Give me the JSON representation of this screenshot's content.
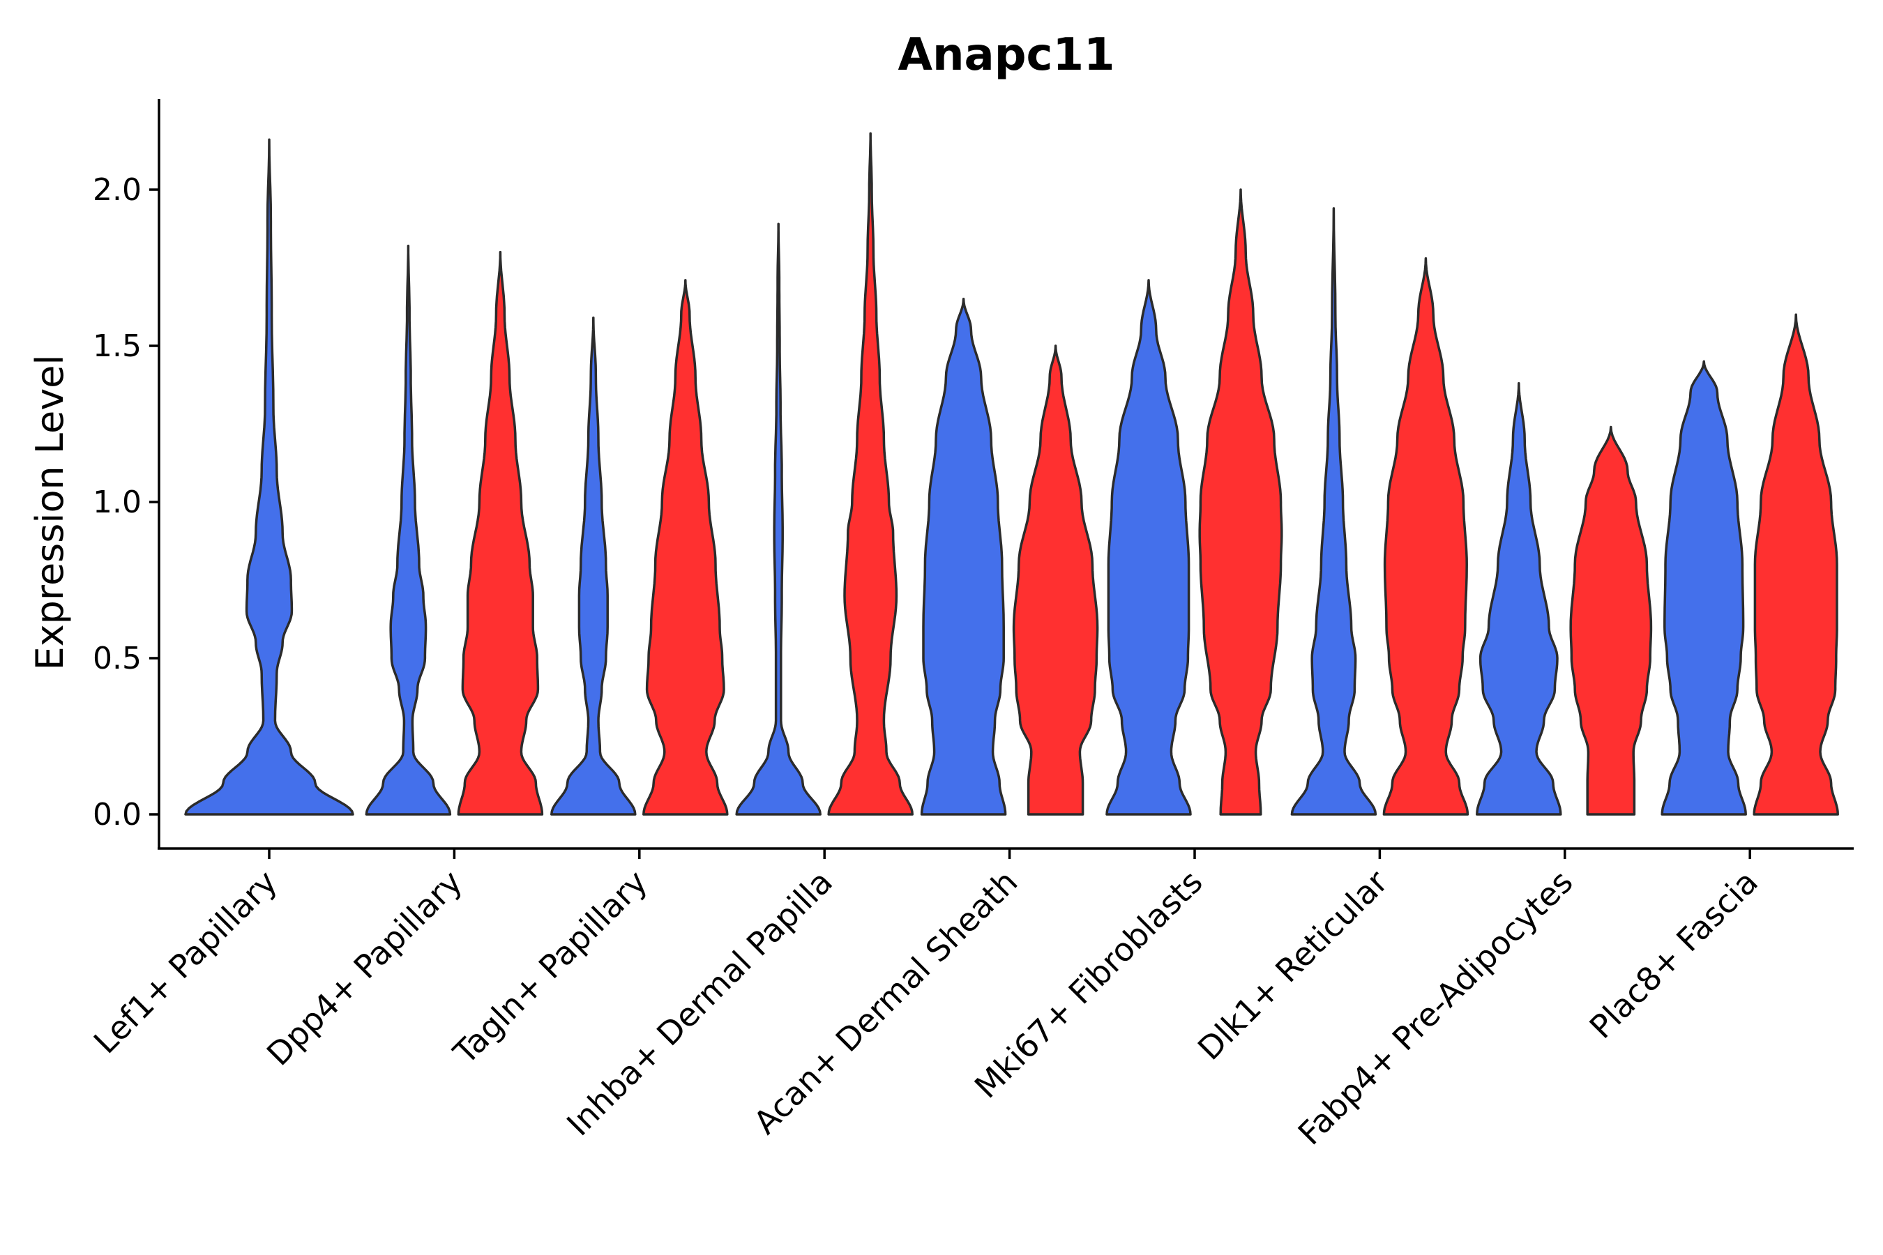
{
  "chart_data": {
    "type": "violin",
    "title": "Anapc11",
    "xlabel": "",
    "ylabel": "Expression Level",
    "ylim": [
      -0.1,
      2.3
    ],
    "yticks": [
      "0.0",
      "0.5",
      "1.0",
      "1.5",
      "2.0"
    ],
    "ytick_values": [
      0.0,
      0.5,
      1.0,
      1.5,
      2.0
    ],
    "colors": {
      "group1": "#4470EB",
      "group2": "#FF3030"
    },
    "categories": [
      "Lef1+ Papillary",
      "Dpp4+ Papillary",
      "Tagln+ Papillary",
      "Inhba+ Dermal Papilla",
      "Acan+ Dermal Sheath",
      "Mki67+ Fibroblasts",
      "Dlk1+ Reticular",
      "Fabp4+ Pre-Adipocytes",
      "Plac8+ Fascia"
    ],
    "violins": [
      {
        "category": 0,
        "group": "group1",
        "ymax": 2.16,
        "profile": [
          [
            0,
            1.0
          ],
          [
            0.1,
            0.55
          ],
          [
            0.2,
            0.26
          ],
          [
            0.3,
            0.07
          ],
          [
            0.45,
            0.09
          ],
          [
            0.55,
            0.16
          ],
          [
            0.65,
            0.27
          ],
          [
            0.75,
            0.26
          ],
          [
            0.9,
            0.16
          ],
          [
            1.1,
            0.09
          ],
          [
            1.3,
            0.05
          ],
          [
            1.6,
            0.03
          ],
          [
            1.9,
            0.02
          ],
          [
            2.16,
            0
          ]
        ]
      },
      {
        "category": 1,
        "group": "group1",
        "ymax": 1.82,
        "profile": [
          [
            0,
            1.0
          ],
          [
            0.1,
            0.6
          ],
          [
            0.2,
            0.12
          ],
          [
            0.3,
            0.1
          ],
          [
            0.4,
            0.22
          ],
          [
            0.5,
            0.4
          ],
          [
            0.6,
            0.42
          ],
          [
            0.7,
            0.36
          ],
          [
            0.8,
            0.26
          ],
          [
            1.0,
            0.16
          ],
          [
            1.2,
            0.09
          ],
          [
            1.4,
            0.06
          ],
          [
            1.6,
            0.03
          ],
          [
            1.82,
            0
          ]
        ]
      },
      {
        "category": 1,
        "group": "group2",
        "ymax": 1.8,
        "profile": [
          [
            0,
            1.0
          ],
          [
            0.1,
            0.85
          ],
          [
            0.2,
            0.5
          ],
          [
            0.3,
            0.62
          ],
          [
            0.4,
            0.9
          ],
          [
            0.5,
            0.88
          ],
          [
            0.6,
            0.78
          ],
          [
            0.7,
            0.78
          ],
          [
            0.8,
            0.7
          ],
          [
            1.0,
            0.5
          ],
          [
            1.2,
            0.36
          ],
          [
            1.4,
            0.22
          ],
          [
            1.6,
            0.1
          ],
          [
            1.8,
            0
          ]
        ]
      },
      {
        "category": 2,
        "group": "group1",
        "ymax": 1.59,
        "profile": [
          [
            0,
            1.0
          ],
          [
            0.1,
            0.62
          ],
          [
            0.2,
            0.16
          ],
          [
            0.3,
            0.12
          ],
          [
            0.4,
            0.2
          ],
          [
            0.5,
            0.3
          ],
          [
            0.6,
            0.34
          ],
          [
            0.7,
            0.34
          ],
          [
            0.8,
            0.3
          ],
          [
            1.0,
            0.2
          ],
          [
            1.2,
            0.12
          ],
          [
            1.4,
            0.06
          ],
          [
            1.59,
            0
          ]
        ]
      },
      {
        "category": 2,
        "group": "group2",
        "ymax": 1.71,
        "profile": [
          [
            0,
            1.0
          ],
          [
            0.1,
            0.76
          ],
          [
            0.2,
            0.5
          ],
          [
            0.3,
            0.7
          ],
          [
            0.4,
            0.92
          ],
          [
            0.5,
            0.88
          ],
          [
            0.6,
            0.82
          ],
          [
            0.8,
            0.72
          ],
          [
            1.0,
            0.56
          ],
          [
            1.2,
            0.38
          ],
          [
            1.4,
            0.24
          ],
          [
            1.6,
            0.1
          ],
          [
            1.71,
            0
          ]
        ]
      },
      {
        "category": 3,
        "group": "group1",
        "ymax": 1.89,
        "profile": [
          [
            0,
            1.0
          ],
          [
            0.1,
            0.58
          ],
          [
            0.2,
            0.24
          ],
          [
            0.3,
            0.06
          ],
          [
            0.5,
            0.06
          ],
          [
            0.7,
            0.08
          ],
          [
            0.9,
            0.1
          ],
          [
            1.1,
            0.08
          ],
          [
            1.3,
            0.05
          ],
          [
            1.5,
            0.03
          ],
          [
            1.7,
            0.02
          ],
          [
            1.89,
            0
          ]
        ]
      },
      {
        "category": 3,
        "group": "group2",
        "ymax": 2.18,
        "profile": [
          [
            0,
            1.0
          ],
          [
            0.1,
            0.7
          ],
          [
            0.2,
            0.38
          ],
          [
            0.3,
            0.32
          ],
          [
            0.5,
            0.48
          ],
          [
            0.7,
            0.62
          ],
          [
            0.9,
            0.54
          ],
          [
            1.0,
            0.44
          ],
          [
            1.2,
            0.32
          ],
          [
            1.4,
            0.22
          ],
          [
            1.6,
            0.14
          ],
          [
            1.8,
            0.07
          ],
          [
            2.0,
            0.03
          ],
          [
            2.18,
            0
          ]
        ]
      },
      {
        "category": 4,
        "group": "group1",
        "ymax": 1.65,
        "profile": [
          [
            0,
            1.0
          ],
          [
            0.1,
            0.86
          ],
          [
            0.2,
            0.7
          ],
          [
            0.3,
            0.75
          ],
          [
            0.4,
            0.88
          ],
          [
            0.5,
            0.96
          ],
          [
            0.6,
            0.96
          ],
          [
            0.8,
            0.92
          ],
          [
            1.0,
            0.82
          ],
          [
            1.2,
            0.66
          ],
          [
            1.4,
            0.42
          ],
          [
            1.55,
            0.18
          ],
          [
            1.65,
            0
          ]
        ]
      },
      {
        "category": 4,
        "group": "group2",
        "ymax": 1.5,
        "profile": [
          [
            0,
            0.65
          ],
          [
            0.1,
            0.65
          ],
          [
            0.2,
            0.58
          ],
          [
            0.3,
            0.85
          ],
          [
            0.4,
            0.94
          ],
          [
            0.5,
            0.98
          ],
          [
            0.6,
            1.0
          ],
          [
            0.8,
            0.88
          ],
          [
            1.0,
            0.62
          ],
          [
            1.2,
            0.36
          ],
          [
            1.4,
            0.14
          ],
          [
            1.5,
            0
          ]
        ]
      },
      {
        "category": 5,
        "group": "group1",
        "ymax": 1.71,
        "profile": [
          [
            0,
            1.0
          ],
          [
            0.1,
            0.74
          ],
          [
            0.2,
            0.54
          ],
          [
            0.3,
            0.64
          ],
          [
            0.4,
            0.86
          ],
          [
            0.5,
            0.94
          ],
          [
            0.6,
            0.96
          ],
          [
            0.8,
            0.96
          ],
          [
            1.0,
            0.88
          ],
          [
            1.2,
            0.7
          ],
          [
            1.4,
            0.4
          ],
          [
            1.55,
            0.18
          ],
          [
            1.71,
            0
          ]
        ]
      },
      {
        "category": 5,
        "group": "group2",
        "ymax": 2.0,
        "profile": [
          [
            0,
            0.48
          ],
          [
            0.1,
            0.44
          ],
          [
            0.2,
            0.36
          ],
          [
            0.3,
            0.5
          ],
          [
            0.4,
            0.72
          ],
          [
            0.6,
            0.88
          ],
          [
            0.8,
            0.96
          ],
          [
            0.9,
            0.98
          ],
          [
            1.0,
            0.96
          ],
          [
            1.2,
            0.8
          ],
          [
            1.4,
            0.5
          ],
          [
            1.6,
            0.3
          ],
          [
            1.8,
            0.12
          ],
          [
            2.0,
            0
          ]
        ]
      },
      {
        "category": 6,
        "group": "group1",
        "ymax": 1.94,
        "profile": [
          [
            0,
            1.0
          ],
          [
            0.1,
            0.62
          ],
          [
            0.2,
            0.26
          ],
          [
            0.3,
            0.36
          ],
          [
            0.4,
            0.5
          ],
          [
            0.5,
            0.52
          ],
          [
            0.6,
            0.42
          ],
          [
            0.8,
            0.3
          ],
          [
            1.0,
            0.22
          ],
          [
            1.2,
            0.14
          ],
          [
            1.4,
            0.08
          ],
          [
            1.6,
            0.04
          ],
          [
            1.94,
            0
          ]
        ]
      },
      {
        "category": 6,
        "group": "group2",
        "ymax": 1.78,
        "profile": [
          [
            0,
            1.0
          ],
          [
            0.1,
            0.8
          ],
          [
            0.2,
            0.48
          ],
          [
            0.3,
            0.62
          ],
          [
            0.4,
            0.8
          ],
          [
            0.5,
            0.88
          ],
          [
            0.6,
            0.94
          ],
          [
            0.8,
            0.98
          ],
          [
            1.0,
            0.9
          ],
          [
            1.2,
            0.68
          ],
          [
            1.4,
            0.42
          ],
          [
            1.6,
            0.18
          ],
          [
            1.78,
            0
          ]
        ]
      },
      {
        "category": 7,
        "group": "group1",
        "ymax": 1.38,
        "profile": [
          [
            0,
            1.0
          ],
          [
            0.1,
            0.82
          ],
          [
            0.2,
            0.42
          ],
          [
            0.3,
            0.6
          ],
          [
            0.4,
            0.86
          ],
          [
            0.5,
            0.92
          ],
          [
            0.6,
            0.72
          ],
          [
            0.8,
            0.5
          ],
          [
            1.0,
            0.28
          ],
          [
            1.2,
            0.14
          ],
          [
            1.38,
            0
          ]
        ]
      },
      {
        "category": 7,
        "group": "group2",
        "ymax": 1.24,
        "profile": [
          [
            0,
            0.56
          ],
          [
            0.1,
            0.56
          ],
          [
            0.2,
            0.54
          ],
          [
            0.3,
            0.72
          ],
          [
            0.4,
            0.86
          ],
          [
            0.5,
            0.94
          ],
          [
            0.6,
            0.96
          ],
          [
            0.8,
            0.86
          ],
          [
            1.0,
            0.6
          ],
          [
            1.1,
            0.4
          ],
          [
            1.24,
            0
          ]
        ]
      },
      {
        "category": 8,
        "group": "group1",
        "ymax": 1.45,
        "profile": [
          [
            0,
            1.0
          ],
          [
            0.1,
            0.82
          ],
          [
            0.2,
            0.58
          ],
          [
            0.3,
            0.62
          ],
          [
            0.4,
            0.8
          ],
          [
            0.5,
            0.88
          ],
          [
            0.6,
            0.94
          ],
          [
            0.8,
            0.92
          ],
          [
            1.0,
            0.8
          ],
          [
            1.2,
            0.56
          ],
          [
            1.35,
            0.32
          ],
          [
            1.45,
            0
          ]
        ]
      },
      {
        "category": 8,
        "group": "group2",
        "ymax": 1.6,
        "profile": [
          [
            0,
            1.0
          ],
          [
            0.1,
            0.84
          ],
          [
            0.2,
            0.58
          ],
          [
            0.3,
            0.76
          ],
          [
            0.4,
            0.94
          ],
          [
            0.5,
            0.96
          ],
          [
            0.6,
            0.98
          ],
          [
            0.8,
            0.98
          ],
          [
            1.0,
            0.84
          ],
          [
            1.2,
            0.56
          ],
          [
            1.4,
            0.3
          ],
          [
            1.6,
            0
          ]
        ]
      }
    ]
  }
}
